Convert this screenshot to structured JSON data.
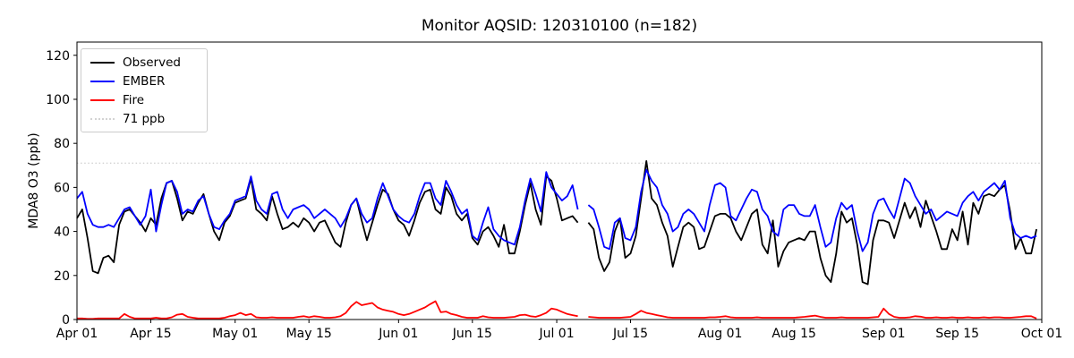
{
  "title": "Monitor AQSID: 120310100 (n=182)",
  "monitor_aqsid": "120310100",
  "n": 182,
  "ylabel": "MDA8 O3 (ppb)",
  "colors": {
    "observed": "#000000",
    "ember": "#0000ff",
    "fire": "#ff0000",
    "threshold": "#d3d3d3",
    "axis": "#000000",
    "background": "#ffffff"
  },
  "legend": {
    "items": [
      {
        "label": "Observed",
        "color": "#000000",
        "style": "solid"
      },
      {
        "label": "EMBER",
        "color": "#0000ff",
        "style": "solid"
      },
      {
        "label": "Fire",
        "color": "#ff0000",
        "style": "solid"
      },
      {
        "label": "71 ppb",
        "color": "#d3d3d3",
        "style": "dotted"
      }
    ]
  },
  "chart_data": {
    "type": "line",
    "title": "Monitor AQSID: 120310100 (n=182)",
    "xlabel": "",
    "ylabel": "MDA8 O3 (ppb)",
    "x_unit": "day",
    "x_start_date": "Apr 01",
    "x_end_date": "Oct 01",
    "x_days_total": 183,
    "ylim": [
      0,
      126
    ],
    "yticks": [
      0,
      20,
      40,
      60,
      80,
      100,
      120
    ],
    "xticks": [
      {
        "label": "Apr 01",
        "day": 0
      },
      {
        "label": "Apr 15",
        "day": 14
      },
      {
        "label": "May 01",
        "day": 30
      },
      {
        "label": "May 15",
        "day": 44
      },
      {
        "label": "Jun 01",
        "day": 61
      },
      {
        "label": "Jun 15",
        "day": 75
      },
      {
        "label": "Jul 01",
        "day": 91
      },
      {
        "label": "Jul 15",
        "day": 105
      },
      {
        "label": "Aug 01",
        "day": 122
      },
      {
        "label": "Aug 15",
        "day": 136
      },
      {
        "label": "Sep 01",
        "day": 153
      },
      {
        "label": "Sep 15",
        "day": 167
      },
      {
        "label": "Oct 01",
        "day": 183
      }
    ],
    "threshold": {
      "label": "71 ppb",
      "value": 71,
      "style": "dotted"
    },
    "data_gap": "missing value on Jul 06 (line break in all series)",
    "legend_position": "upper left",
    "grid": false,
    "series": [
      {
        "name": "Observed",
        "color": "#000000",
        "values": [
          46,
          50,
          37,
          22,
          21,
          28,
          29,
          26,
          43,
          49,
          50,
          47,
          44,
          40,
          46,
          43,
          55,
          62,
          63,
          55,
          45,
          49,
          48,
          53,
          57,
          48,
          40,
          36,
          44,
          47,
          53,
          54,
          55,
          64,
          50,
          48,
          45,
          56,
          48,
          41,
          42,
          44,
          42,
          46,
          44,
          40,
          44,
          45,
          40,
          35,
          33,
          44,
          52,
          55,
          45,
          36,
          44,
          52,
          59,
          57,
          50,
          45,
          43,
          38,
          45,
          53,
          58,
          59,
          50,
          48,
          60,
          56,
          48,
          45,
          48,
          37,
          34,
          40,
          42,
          38,
          33,
          43,
          30,
          30,
          40,
          52,
          62,
          50,
          43,
          65,
          63,
          55,
          45,
          46,
          47,
          44,
          null,
          44,
          41,
          28,
          22,
          26,
          40,
          46,
          28,
          30,
          38,
          55,
          72,
          55,
          52,
          44,
          38,
          24,
          33,
          42,
          44,
          42,
          32,
          33,
          40,
          47,
          48,
          48,
          46,
          40,
          36,
          42,
          48,
          50,
          34,
          30,
          45,
          24,
          31,
          35,
          36,
          37,
          36,
          40,
          40,
          28,
          20,
          17,
          30,
          49,
          44,
          46,
          34,
          17,
          16,
          36,
          45,
          45,
          44,
          37,
          45,
          53,
          46,
          51,
          42,
          54,
          47,
          40,
          32,
          32,
          41,
          36,
          49,
          34,
          53,
          48,
          56,
          57,
          56,
          59,
          61,
          49,
          32,
          37,
          30,
          30,
          41
        ]
      },
      {
        "name": "EMBER",
        "color": "#0000ff",
        "values": [
          55,
          58,
          48,
          43,
          42,
          42,
          43,
          42,
          46,
          50,
          51,
          47,
          43,
          47,
          59,
          40,
          52,
          62,
          63,
          58,
          48,
          50,
          49,
          54,
          56,
          48,
          42,
          41,
          45,
          48,
          54,
          55,
          56,
          65,
          54,
          50,
          48,
          57,
          58,
          50,
          46,
          50,
          51,
          52,
          50,
          46,
          48,
          50,
          48,
          46,
          42,
          46,
          52,
          55,
          48,
          44,
          46,
          55,
          62,
          56,
          50,
          47,
          45,
          44,
          48,
          56,
          62,
          62,
          55,
          52,
          63,
          58,
          52,
          48,
          50,
          38,
          36,
          44,
          51,
          41,
          38,
          36,
          35,
          34,
          42,
          54,
          64,
          57,
          49,
          67,
          60,
          57,
          54,
          56,
          61,
          50,
          null,
          52,
          50,
          42,
          33,
          32,
          44,
          46,
          37,
          36,
          42,
          58,
          68,
          63,
          60,
          52,
          48,
          40,
          42,
          48,
          50,
          48,
          44,
          40,
          52,
          61,
          62,
          60,
          47,
          45,
          50,
          55,
          59,
          58,
          50,
          47,
          40,
          38,
          50,
          52,
          52,
          48,
          47,
          47,
          52,
          42,
          33,
          35,
          46,
          53,
          50,
          52,
          40,
          31,
          35,
          48,
          54,
          55,
          50,
          46,
          55,
          64,
          62,
          56,
          52,
          48,
          50,
          45,
          47,
          49,
          48,
          47,
          53,
          56,
          58,
          54,
          58,
          60,
          62,
          59,
          63,
          46,
          39,
          37,
          38,
          37,
          38
        ]
      },
      {
        "name": "Fire",
        "color": "#ff0000",
        "values": [
          0.5,
          0.5,
          0.3,
          0.3,
          0.5,
          0.5,
          0.5,
          0.5,
          0.5,
          2.5,
          1.2,
          0.5,
          0.5,
          0.5,
          0.5,
          0.8,
          0.5,
          0.5,
          1.0,
          2.2,
          2.5,
          1.2,
          0.8,
          0.5,
          0.5,
          0.5,
          0.5,
          0.5,
          0.8,
          1.5,
          2.0,
          3.0,
          2.0,
          2.5,
          1.0,
          0.8,
          0.8,
          1.0,
          0.8,
          0.8,
          0.8,
          0.8,
          1.2,
          1.5,
          1.0,
          1.5,
          1.2,
          0.8,
          0.8,
          1.0,
          1.5,
          3.0,
          6.0,
          8.0,
          6.5,
          7.0,
          7.5,
          5.5,
          4.5,
          4.0,
          3.5,
          2.5,
          2.0,
          2.5,
          3.5,
          4.5,
          5.5,
          7.0,
          8.3,
          3.3,
          3.6,
          2.5,
          2.0,
          1.2,
          0.8,
          0.8,
          0.8,
          1.5,
          1.0,
          0.8,
          0.8,
          0.8,
          1.0,
          1.2,
          2.0,
          2.2,
          1.5,
          1.2,
          2.0,
          3.0,
          5.0,
          4.5,
          3.5,
          2.5,
          2.0,
          1.5,
          null,
          1.2,
          1.0,
          0.8,
          0.8,
          0.8,
          0.8,
          0.8,
          1.0,
          1.2,
          2.5,
          4.0,
          3.0,
          2.5,
          2.0,
          1.5,
          1.0,
          0.8,
          0.8,
          0.8,
          0.8,
          0.8,
          0.8,
          0.8,
          1.0,
          1.0,
          1.2,
          1.5,
          1.0,
          0.8,
          0.8,
          0.8,
          0.8,
          1.0,
          0.8,
          0.8,
          0.8,
          0.8,
          0.8,
          0.8,
          0.8,
          1.0,
          1.2,
          1.5,
          1.8,
          1.2,
          0.8,
          0.8,
          0.8,
          1.0,
          0.8,
          0.8,
          0.8,
          0.8,
          0.8,
          1.0,
          1.2,
          5.0,
          2.5,
          1.2,
          0.8,
          0.8,
          1.0,
          1.5,
          1.3,
          0.8,
          0.8,
          1.0,
          0.8,
          0.8,
          1.0,
          0.8,
          0.8,
          1.0,
          0.8,
          0.8,
          1.0,
          0.8,
          1.0,
          1.0,
          0.8,
          0.8,
          1.0,
          1.2,
          1.5,
          1.5,
          0.5
        ]
      }
    ]
  }
}
